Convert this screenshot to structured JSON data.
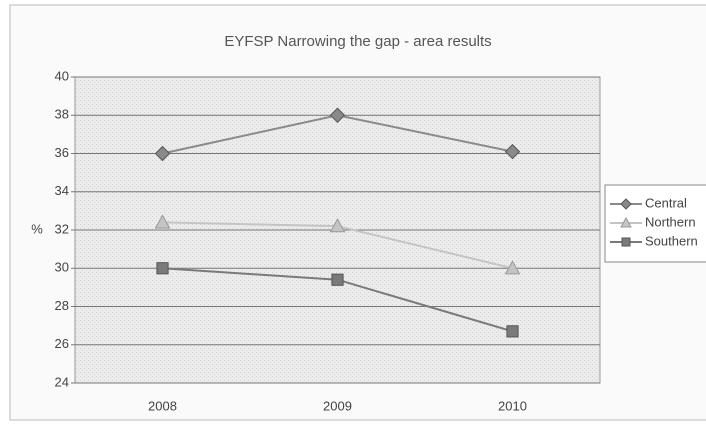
{
  "chart_data": {
    "type": "line",
    "title": "EYFSP Narrowing the gap - area results",
    "y_label": "%",
    "categories": [
      "2008",
      "2009",
      "2010"
    ],
    "series": [
      {
        "name": "Central",
        "color": "#8a8a8a",
        "marker": "diamond",
        "values": [
          36,
          38,
          36.1
        ]
      },
      {
        "name": "Northern",
        "color": "#c4c4c4",
        "marker": "triangle",
        "values": [
          32.4,
          32.2,
          30
        ]
      },
      {
        "name": "Southern",
        "color": "#7a7a7a",
        "marker": "square",
        "values": [
          30,
          29.4,
          26.7
        ]
      }
    ],
    "ylim": [
      24,
      40
    ],
    "yticks": [
      24,
      26,
      28,
      30,
      32,
      34,
      36,
      38,
      40
    ],
    "grid": true,
    "legend": "right"
  }
}
